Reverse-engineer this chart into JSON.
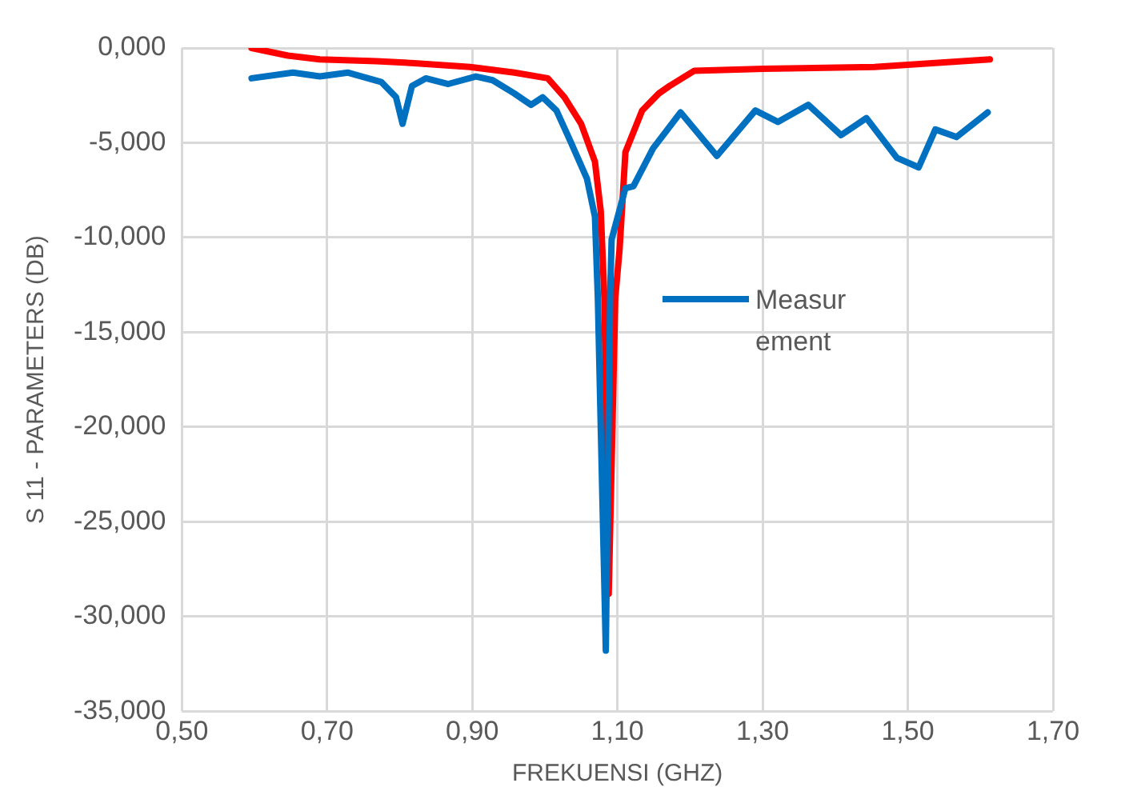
{
  "chart_data": {
    "type": "line",
    "xlabel": "FREKUENSI (GHZ)",
    "ylabel": "S 11 - PARAMETERS (DB)",
    "xlim": [
      0.5,
      1.7
    ],
    "xticks": [
      {
        "value": 0.5,
        "label": "0,50"
      },
      {
        "value": 0.7,
        "label": "0,70"
      },
      {
        "value": 0.9,
        "label": "0,90"
      },
      {
        "value": 1.1,
        "label": "1,10"
      },
      {
        "value": 1.3,
        "label": "1,30"
      },
      {
        "value": 1.5,
        "label": "1,50"
      },
      {
        "value": 1.7,
        "label": "1,70"
      }
    ],
    "ylim": [
      -35,
      0
    ],
    "yticks": [
      {
        "value": 0,
        "label": "0,000"
      },
      {
        "value": -5,
        "label": "-5,000"
      },
      {
        "value": -10,
        "label": "-10,000"
      },
      {
        "value": -15,
        "label": "-15,000"
      },
      {
        "value": -20,
        "label": "-20,000"
      },
      {
        "value": -25,
        "label": "-25,000"
      },
      {
        "value": -30,
        "label": "-30,000"
      },
      {
        "value": -35,
        "label": "-35,000"
      }
    ],
    "grid": true,
    "legend": "right",
    "marker": "none",
    "line_style": "solid",
    "series": [
      {
        "name": "Measurement",
        "color": "#0070c0",
        "x": [
          0.596,
          0.653,
          0.69,
          0.729,
          0.775,
          0.795,
          0.804,
          0.817,
          0.836,
          0.867,
          0.905,
          0.928,
          0.958,
          0.981,
          0.997,
          1.016,
          1.035,
          1.058,
          1.069,
          1.073,
          1.084,
          1.09,
          1.092,
          1.111,
          1.122,
          1.149,
          1.187,
          1.237,
          1.29,
          1.321,
          1.363,
          1.408,
          1.443,
          1.485,
          1.515,
          1.538,
          1.567,
          1.61
        ],
        "values": [
          -1.6,
          -1.3,
          -1.5,
          -1.3,
          -1.8,
          -2.6,
          -4.0,
          -2.0,
          -1.6,
          -1.9,
          -1.5,
          -1.7,
          -2.4,
          -3.0,
          -2.6,
          -3.3,
          -4.9,
          -6.9,
          -8.9,
          -13.2,
          -31.8,
          -13.0,
          -10.1,
          -7.4,
          -7.3,
          -5.3,
          -3.4,
          -5.7,
          -3.3,
          -3.9,
          -3.0,
          -4.6,
          -3.7,
          -5.8,
          -6.3,
          -4.3,
          -4.7,
          -3.4
        ]
      },
      {
        "color": "#ff0000",
        "x": [
          0.596,
          0.646,
          0.69,
          0.768,
          0.82,
          0.897,
          0.958,
          1.004,
          1.027,
          1.05,
          1.069,
          1.077,
          1.082,
          1.088,
          1.097,
          1.103,
          1.111,
          1.134,
          1.157,
          1.172,
          1.206,
          1.302,
          1.454,
          1.613
        ],
        "values": [
          0.0,
          -0.4,
          -0.6,
          -0.7,
          -0.8,
          -1.0,
          -1.3,
          -1.6,
          -2.6,
          -4.0,
          -6.0,
          -8.6,
          -13.2,
          -28.8,
          -13.2,
          -10.6,
          -5.5,
          -3.3,
          -2.4,
          -2.0,
          -1.2,
          -1.1,
          -1.0,
          -0.6
        ]
      }
    ]
  }
}
